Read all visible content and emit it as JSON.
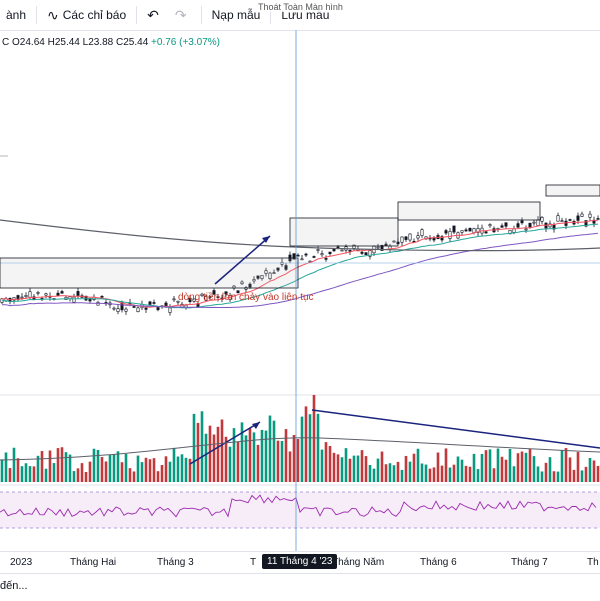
{
  "toolbar": {
    "item_partial": "ành",
    "indicators_label": "Các chỉ báo",
    "load_label": "Nạp mẫu",
    "save_label": "Lưu mẫu",
    "fullscreen_tooltip": "Thoát Toàn Màn hình"
  },
  "legend": {
    "prefix": "C",
    "open": "O24.64",
    "high": "H25.44",
    "low": "L23.88",
    "close": "C25.44",
    "change": "+0.76 (+3.07%)"
  },
  "annotation": "dòng tiền lớn chảy vào liên tục",
  "xaxis": {
    "labels": [
      "2023",
      "Tháng Hai",
      "Tháng 3",
      "T",
      "Tháng Năm",
      "Tháng 6",
      "Tháng 7",
      "Th"
    ],
    "crosshair_date": "11 Tháng 4 '23"
  },
  "status_text": "đến...",
  "colors": {
    "up": "#089981",
    "down": "#c2393b",
    "ma_long": "#5d606b",
    "ma_mid": "#7e57c2",
    "ma_short": "#f7525f",
    "rsi": "#9c27b0",
    "trend": "#1a237e",
    "crosshair": "#5b9bd5"
  }
}
